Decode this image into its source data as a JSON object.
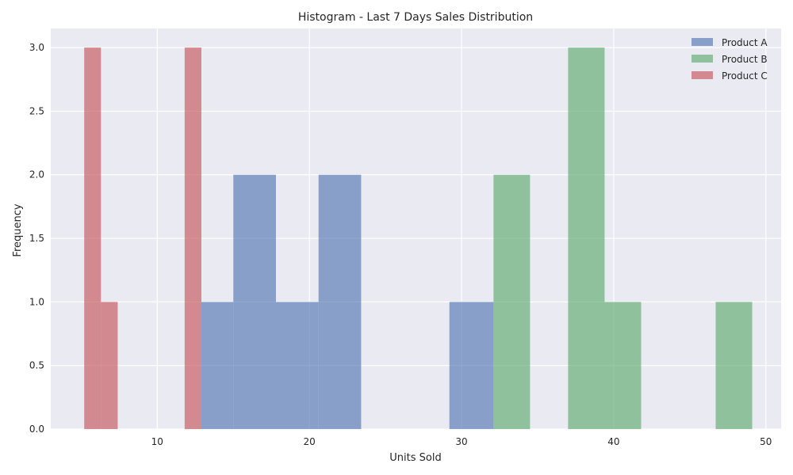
{
  "chart_data": {
    "type": "histogram",
    "title": "Histogram - Last 7 Days Sales Distribution",
    "xlabel": "Units Sold",
    "ylabel": "Frequency",
    "xlim": [
      3,
      51
    ],
    "ylim": [
      0,
      3.15
    ],
    "x_ticks": [
      10,
      20,
      30,
      40,
      50
    ],
    "x_tick_labels": [
      "10",
      "20",
      "30",
      "40",
      "50"
    ],
    "y_ticks": [
      0,
      0.5,
      1,
      1.5,
      2,
      2.5,
      3
    ],
    "y_tick_labels": [
      "0.0",
      "0.5",
      "1.0",
      "1.5",
      "2.0",
      "2.5",
      "3.0"
    ],
    "grid": true,
    "legend_position": "top-right",
    "series": [
      {
        "name": "Product A",
        "color": "#4c72b0",
        "bins": [
          {
            "x0": 12.9,
            "x1": 15.0,
            "count": 1
          },
          {
            "x0": 15.0,
            "x1": 17.8,
            "count": 2
          },
          {
            "x0": 17.8,
            "x1": 20.6,
            "count": 1
          },
          {
            "x0": 20.6,
            "x1": 23.4,
            "count": 2
          },
          {
            "x0": 29.2,
            "x1": 32.1,
            "count": 1
          }
        ]
      },
      {
        "name": "Product B",
        "color": "#55a868",
        "bins": [
          {
            "x0": 32.1,
            "x1": 34.5,
            "count": 2
          },
          {
            "x0": 37.0,
            "x1": 39.4,
            "count": 3
          },
          {
            "x0": 39.4,
            "x1": 41.8,
            "count": 1
          },
          {
            "x0": 46.7,
            "x1": 49.1,
            "count": 1
          }
        ]
      },
      {
        "name": "Product C",
        "color": "#c44e52",
        "bins": [
          {
            "x0": 5.2,
            "x1": 6.3,
            "count": 3
          },
          {
            "x0": 6.3,
            "x1": 7.4,
            "count": 1
          },
          {
            "x0": 11.8,
            "x1": 12.9,
            "count": 3
          }
        ]
      }
    ]
  }
}
